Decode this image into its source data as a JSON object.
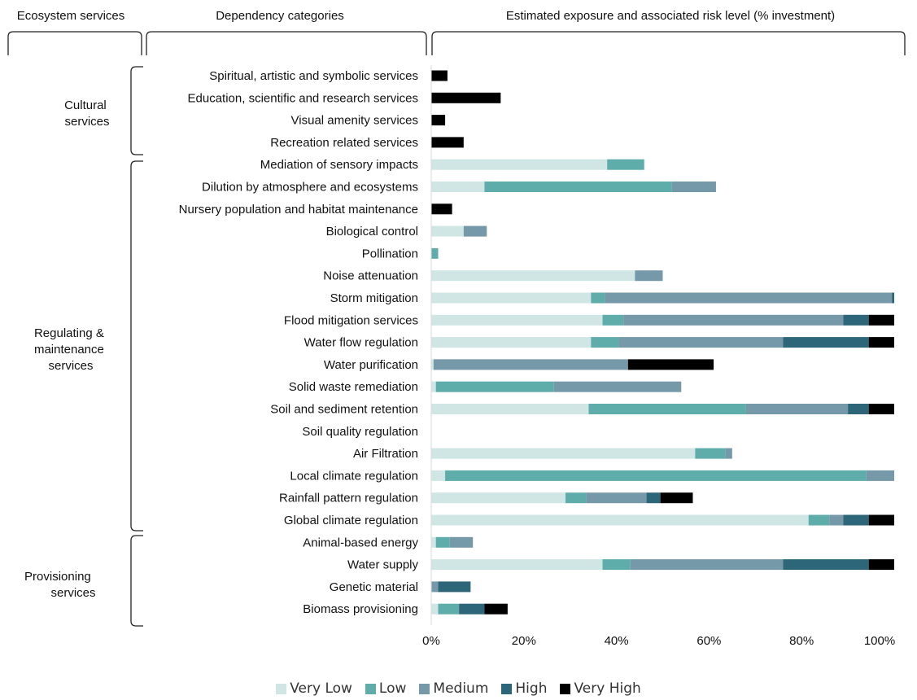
{
  "headers": {
    "col1": "Ecosystem services",
    "col2": "Dependency categories",
    "col3": "Estimated exposure and associated risk level (% investment)"
  },
  "groups": [
    {
      "label_lines": [
        "Cultural",
        "services"
      ]
    },
    {
      "label_lines": [
        "Regulating &",
        "maintenance",
        "services"
      ]
    },
    {
      "label_lines": [
        "Provisioning",
        "services"
      ]
    }
  ],
  "colors": {
    "Very Low": "#cfe6e5",
    "Low": "#5fadab",
    "Medium": "#7599a8",
    "High": "#2c6678",
    "Very High": "#000000"
  },
  "chart_data": {
    "type": "bar",
    "orientation": "horizontal",
    "stacked": true,
    "xlim": [
      0,
      100
    ],
    "xticks": [
      "0%",
      "20%",
      "40%",
      "60%",
      "80%",
      "100%"
    ],
    "legend_position": "bottom",
    "categories": [
      "Spiritual, artistic and symbolic services",
      "Education, scientific and research services",
      "Visual amenity services",
      "Recreation related services",
      "Mediation of sensory impacts",
      "Dilution by atmosphere and ecosystems",
      "Nursery population and habitat maintenance",
      "Biological control",
      "Pollination",
      "Noise attenuation",
      "Storm mitigation",
      "Flood mitigation services",
      "Water flow regulation",
      "Water purification",
      "Solid waste remediation",
      "Soil and sediment retention",
      "Soil quality regulation",
      "Air Filtration",
      "Local climate regulation",
      "Rainfall pattern regulation",
      "Global climate regulation",
      "Animal-based energy",
      "Water supply",
      "Genetic material",
      "Biomass provisioning"
    ],
    "series": [
      {
        "name": "Very Low",
        "values": [
          0,
          0,
          0,
          0,
          38,
          11.5,
          0,
          7,
          0,
          44,
          34.5,
          37,
          34.5,
          0.5,
          1,
          34,
          0,
          57,
          3,
          29,
          81.5,
          1,
          37,
          0,
          1.5
        ]
      },
      {
        "name": "Low",
        "values": [
          0,
          0,
          0,
          0,
          8,
          40.5,
          0,
          0,
          1.5,
          0,
          3,
          4.5,
          6,
          0,
          25.5,
          34,
          0,
          6.5,
          91,
          4.5,
          4.5,
          3,
          6,
          0,
          4.5
        ]
      },
      {
        "name": "Medium",
        "values": [
          0,
          0,
          0,
          0,
          0,
          9.5,
          0,
          5,
          0,
          6,
          62,
          47.5,
          35.5,
          42,
          27.5,
          22,
          0,
          1.5,
          6,
          13,
          3,
          5,
          33,
          1.5,
          0
        ]
      },
      {
        "name": "High",
        "values": [
          0,
          0,
          0,
          0,
          0,
          0,
          0,
          0,
          0,
          0,
          0.5,
          5.5,
          18.5,
          0,
          0,
          4.5,
          0,
          0,
          0,
          3,
          5.5,
          0,
          18.5,
          7,
          5.5
        ]
      },
      {
        "name": "Very High",
        "values": [
          3.5,
          15,
          3,
          7,
          0,
          0,
          4.5,
          0,
          0,
          0,
          0,
          5.5,
          5.5,
          18.5,
          0,
          5.5,
          0,
          0,
          0,
          7,
          5.5,
          0,
          5.5,
          0,
          5
        ]
      }
    ]
  }
}
